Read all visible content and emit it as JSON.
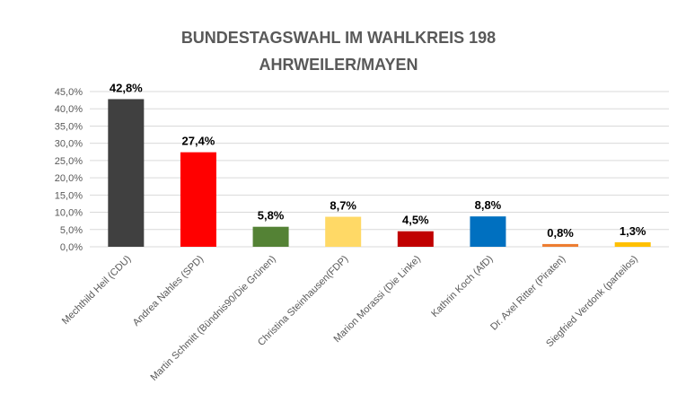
{
  "chart_data": {
    "type": "bar",
    "title": [
      "BUNDESTAGSWAHL IM WAHLKREIS 198",
      "AHRWEILER/MAYEN"
    ],
    "categories": [
      "Mechthild Heil (CDU)",
      "Andrea Nahles  (SPD)",
      "Martin Schmitt (Bündnis90/Die Grünen)",
      "Christina Steinhausen(FDP)",
      "Marion Morassi (Die Linke)",
      "Kathrin Koch (AfD)",
      "Dr. Axel Ritter (Piraten)",
      "Siegfried Verdonk (parteilos)"
    ],
    "values": [
      42.8,
      27.4,
      5.8,
      8.7,
      4.5,
      8.8,
      0.8,
      1.3
    ],
    "data_labels": [
      "42,8%",
      "27,4%",
      "5,8%",
      "8,7%",
      "4,5%",
      "8,8%",
      "0,8%",
      "1,3%"
    ],
    "colors": [
      "#404040",
      "#FF0000",
      "#548235",
      "#FFD966",
      "#C00000",
      "#0070C0",
      "#ED7D31",
      "#FFC000"
    ],
    "yticks": [
      "0,0%",
      "5,0%",
      "10,0%",
      "15,0%",
      "20,0%",
      "25,0%",
      "30,0%",
      "35,0%",
      "40,0%",
      "45,0%"
    ],
    "ylim": [
      0,
      45
    ],
    "grid": true,
    "xlabel": "",
    "ylabel": ""
  }
}
